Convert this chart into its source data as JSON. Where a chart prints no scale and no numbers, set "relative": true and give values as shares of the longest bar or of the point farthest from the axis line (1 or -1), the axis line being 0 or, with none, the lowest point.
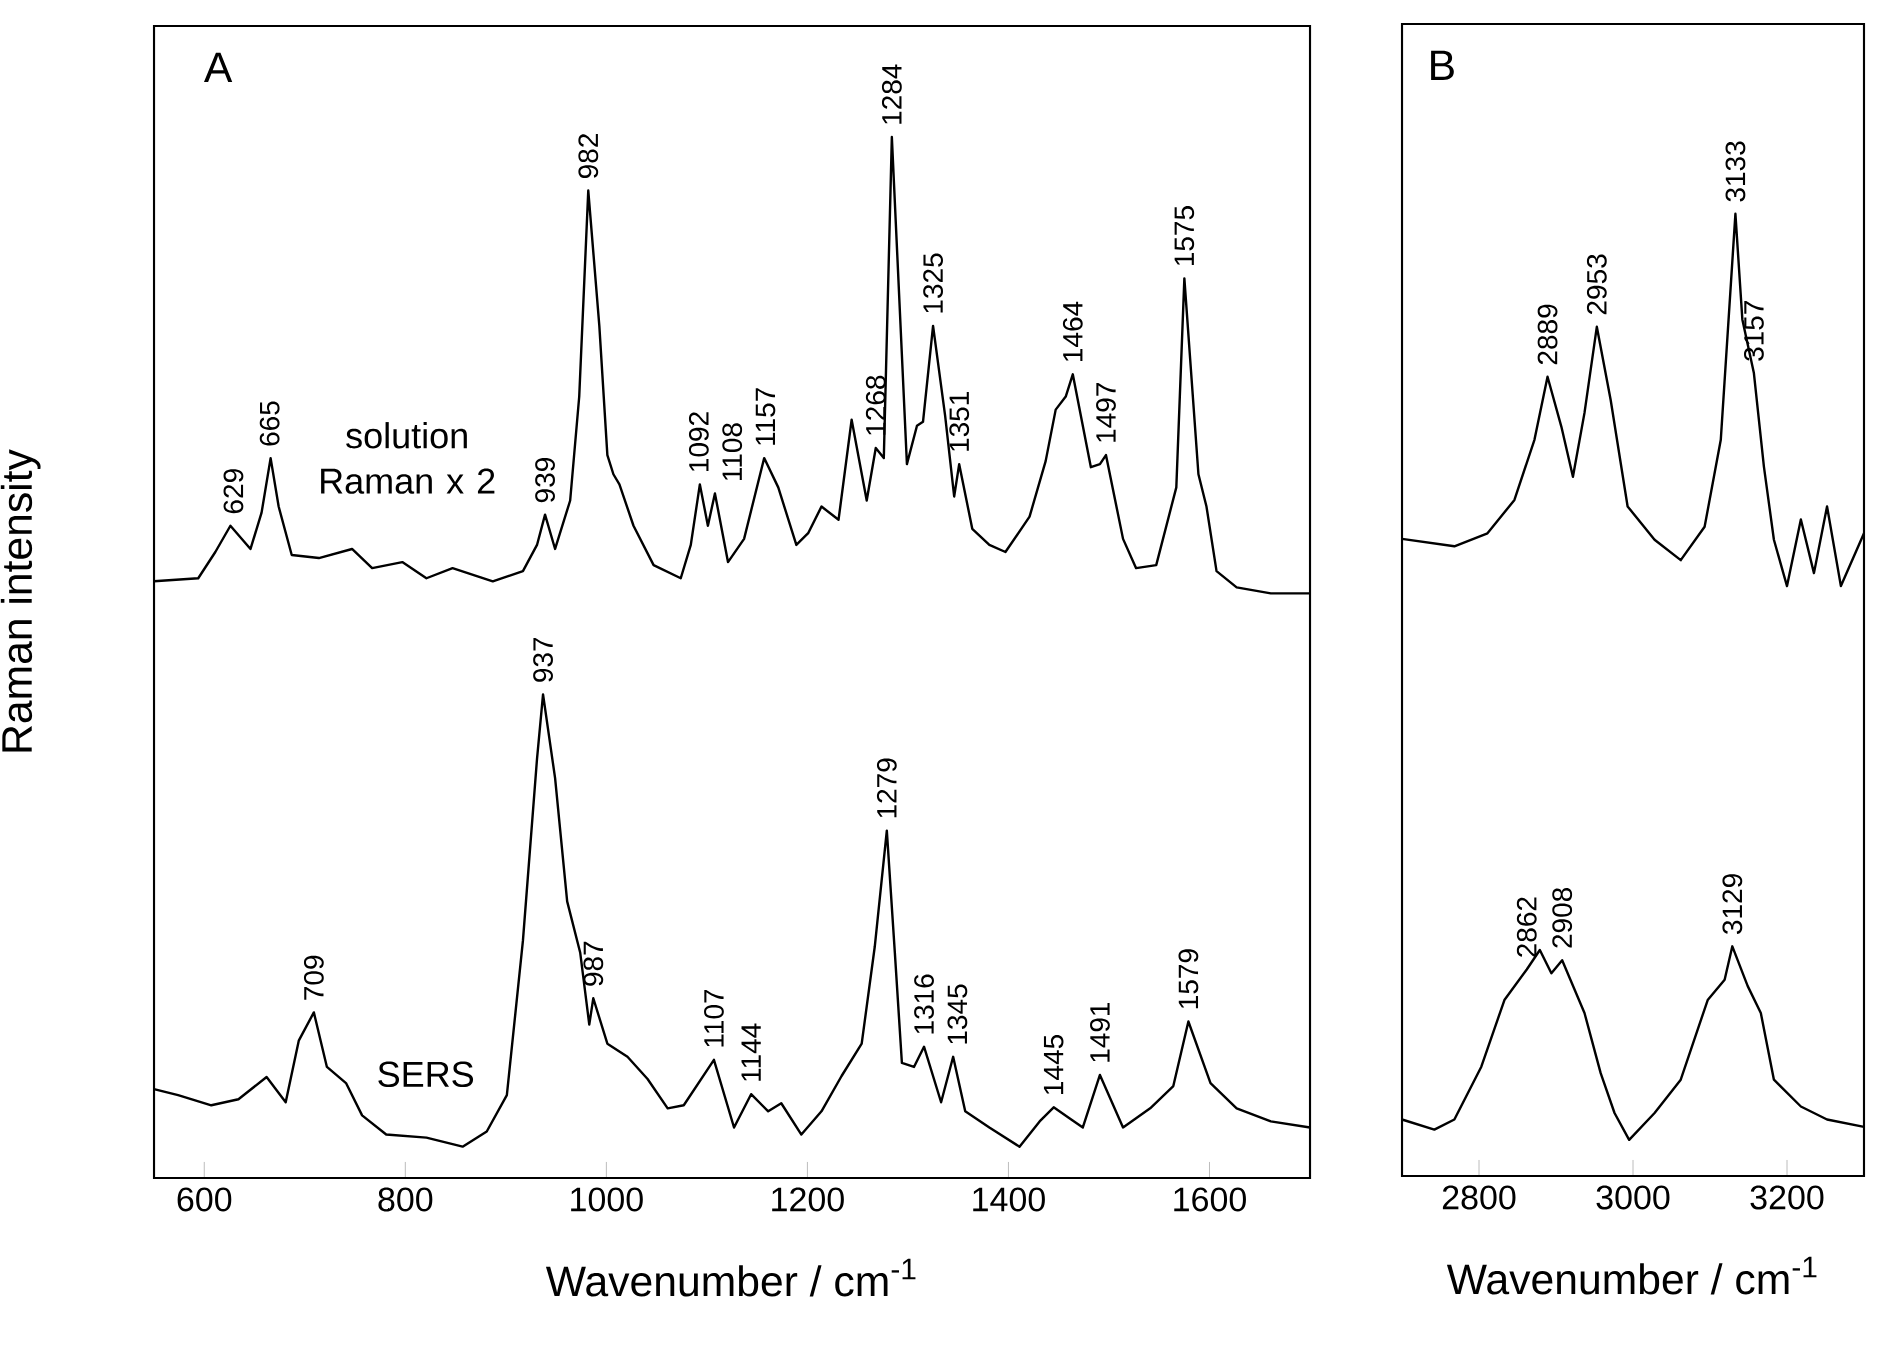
{
  "chart_data": [
    {
      "type": "line",
      "title": "A",
      "xlabel": "Wavenumber / cm$^{-1}$",
      "ylabel": "Raman intensity",
      "xlim": [
        550,
        1700
      ],
      "xticks": [
        600,
        800,
        1000,
        1200,
        1400,
        1600
      ],
      "relative": true,
      "series": [
        {
          "name": "solution Raman x 2",
          "color": "#000000",
          "x": [
            550,
            594,
            611,
            626,
            646,
            657,
            666,
            674,
            687,
            714,
            747,
            767,
            797,
            821,
            847,
            887,
            917,
            931,
            939,
            949,
            964,
            973,
            982,
            993,
            1001,
            1007,
            1013,
            1027,
            1047,
            1074,
            1084,
            1093,
            1101,
            1108,
            1121,
            1137,
            1157,
            1171,
            1189,
            1201,
            1214,
            1231,
            1244,
            1259,
            1268,
            1276,
            1284,
            1299,
            1309,
            1315,
            1325,
            1337,
            1346,
            1351,
            1364,
            1381,
            1397,
            1421,
            1437,
            1447,
            1457,
            1464,
            1482,
            1491,
            1497,
            1514,
            1527,
            1547,
            1567,
            1575,
            1589,
            1597,
            1607,
            1627,
            1661,
            1700
          ],
          "values": [
            0.56,
            0.563,
            0.589,
            0.615,
            0.592,
            0.628,
            0.682,
            0.634,
            0.586,
            0.583,
            0.592,
            0.573,
            0.579,
            0.563,
            0.573,
            0.56,
            0.57,
            0.596,
            0.626,
            0.592,
            0.64,
            0.743,
            0.947,
            0.813,
            0.685,
            0.666,
            0.656,
            0.615,
            0.576,
            0.563,
            0.596,
            0.656,
            0.615,
            0.647,
            0.579,
            0.602,
            0.682,
            0.653,
            0.596,
            0.608,
            0.634,
            0.621,
            0.72,
            0.64,
            0.692,
            0.682,
            1.0,
            0.676,
            0.714,
            0.718,
            0.813,
            0.724,
            0.644,
            0.676,
            0.612,
            0.596,
            0.589,
            0.624,
            0.679,
            0.73,
            0.743,
            0.765,
            0.673,
            0.676,
            0.685,
            0.602,
            0.573,
            0.576,
            0.653,
            0.86,
            0.666,
            0.634,
            0.57,
            0.554,
            0.548,
            0.548
          ]
        },
        {
          "name": "SERS",
          "color": "#000000",
          "x": [
            550,
            574,
            607,
            634,
            662,
            681,
            694,
            709,
            722,
            741,
            757,
            781,
            821,
            857,
            881,
            901,
            917,
            931,
            937,
            949,
            961,
            974,
            983,
            987,
            1001,
            1021,
            1041,
            1061,
            1077,
            1107,
            1127,
            1144,
            1161,
            1174,
            1194,
            1214,
            1234,
            1254,
            1267,
            1279,
            1287,
            1294,
            1306,
            1316,
            1333,
            1345,
            1357,
            1381,
            1411,
            1431,
            1445,
            1461,
            1474,
            1491,
            1514,
            1541,
            1564,
            1579,
            1601,
            1627,
            1661,
            1700
          ],
          "values": [
            0.057,
            0.051,
            0.041,
            0.047,
            0.069,
            0.044,
            0.105,
            0.133,
            0.079,
            0.063,
            0.031,
            0.012,
            0.009,
            0.0,
            0.015,
            0.051,
            0.204,
            0.384,
            0.448,
            0.365,
            0.243,
            0.192,
            0.121,
            0.147,
            0.102,
            0.089,
            0.067,
            0.038,
            0.041,
            0.086,
            0.019,
            0.052,
            0.035,
            0.043,
            0.012,
            0.035,
            0.07,
            0.102,
            0.198,
            0.313,
            0.192,
            0.083,
            0.079,
            0.099,
            0.044,
            0.089,
            0.035,
            0.019,
            0.0,
            0.025,
            0.039,
            0.028,
            0.019,
            0.071,
            0.019,
            0.038,
            0.06,
            0.124,
            0.063,
            0.038,
            0.025,
            0.019
          ]
        }
      ],
      "annotations": [
        {
          "text": "629",
          "x": 629,
          "y": 0.615
        },
        {
          "text": "665",
          "x": 665,
          "y": 0.682
        },
        {
          "text": "939",
          "x": 939,
          "y": 0.626
        },
        {
          "text": "982",
          "x": 982,
          "y": 0.947
        },
        {
          "text": "1092",
          "x": 1092,
          "y": 0.656
        },
        {
          "text": "1108",
          "x": 1108,
          "y": 0.647
        },
        {
          "text": "1157",
          "x": 1157,
          "y": 0.682
        },
        {
          "text": "1268",
          "x": 1268,
          "y": 0.692
        },
        {
          "text": "1284",
          "x": 1284,
          "y": 1.0
        },
        {
          "text": "1325",
          "x": 1325,
          "y": 0.813
        },
        {
          "text": "1351",
          "x": 1351,
          "y": 0.676
        },
        {
          "text": "1464",
          "x": 1464,
          "y": 0.765
        },
        {
          "text": "1497",
          "x": 1497,
          "y": 0.685
        },
        {
          "text": "1575",
          "x": 1575,
          "y": 0.86
        },
        {
          "text": "709",
          "x": 709,
          "y": 0.133
        },
        {
          "text": "937",
          "x": 937,
          "y": 0.448
        },
        {
          "text": "987",
          "x": 987,
          "y": 0.147
        },
        {
          "text": "1107",
          "x": 1107,
          "y": 0.086
        },
        {
          "text": "1144",
          "x": 1144,
          "y": 0.052
        },
        {
          "text": "1279",
          "x": 1279,
          "y": 0.313
        },
        {
          "text": "1316",
          "x": 1316,
          "y": 0.099
        },
        {
          "text": "1345",
          "x": 1345,
          "y": 0.089
        },
        {
          "text": "1445",
          "x": 1445,
          "y": 0.039
        },
        {
          "text": "1491",
          "x": 1491,
          "y": 0.071
        },
        {
          "text": "1579",
          "x": 1579,
          "y": 0.124
        }
      ]
    },
    {
      "type": "line",
      "title": "B",
      "xlabel": "Wavenumber / cm$^{-1}$",
      "xlim": [
        2700,
        3300
      ],
      "xticks": [
        2800,
        3000,
        3200
      ],
      "relative": true,
      "series": [
        {
          "color": "#000000",
          "x": [
            2700,
            2768,
            2811,
            2846,
            2872,
            2889,
            2907,
            2922,
            2937,
            2953,
            2971,
            2993,
            3028,
            3062,
            3093,
            3114,
            3133,
            3142,
            3157,
            3170,
            3183,
            3200,
            3218,
            3235,
            3252,
            3270,
            3300
          ],
          "values": [
            0.649,
            0.641,
            0.655,
            0.691,
            0.756,
            0.824,
            0.77,
            0.716,
            0.785,
            0.878,
            0.799,
            0.684,
            0.648,
            0.626,
            0.662,
            0.756,
            1.0,
            0.886,
            0.828,
            0.727,
            0.648,
            0.598,
            0.67,
            0.612,
            0.684,
            0.598,
            0.655
          ]
        },
        {
          "color": "#000000",
          "x": [
            2700,
            2742,
            2768,
            2803,
            2833,
            2862,
            2879,
            2894,
            2908,
            2937,
            2958,
            2976,
            2995,
            3028,
            3062,
            3097,
            3119,
            3129,
            3149,
            3166,
            3183,
            3218,
            3252,
            3300
          ],
          "values": [
            0.022,
            0.011,
            0.022,
            0.079,
            0.151,
            0.184,
            0.205,
            0.18,
            0.194,
            0.137,
            0.072,
            0.029,
            0.0,
            0.029,
            0.065,
            0.151,
            0.173,
            0.209,
            0.166,
            0.137,
            0.065,
            0.036,
            0.022,
            0.014
          ]
        }
      ],
      "annotations": [
        {
          "text": "2889",
          "x": 2889,
          "y": 0.824
        },
        {
          "text": "2953",
          "x": 2953,
          "y": 0.878
        },
        {
          "text": "3133",
          "x": 3133,
          "y": 1.0
        },
        {
          "text": "3157",
          "x": 3157,
          "y": 0.828
        },
        {
          "text": "2862",
          "x": 2862,
          "y": 0.184
        },
        {
          "text": "2908",
          "x": 2908,
          "y": 0.194
        },
        {
          "text": "3129",
          "x": 3129,
          "y": 0.209
        }
      ]
    }
  ]
}
